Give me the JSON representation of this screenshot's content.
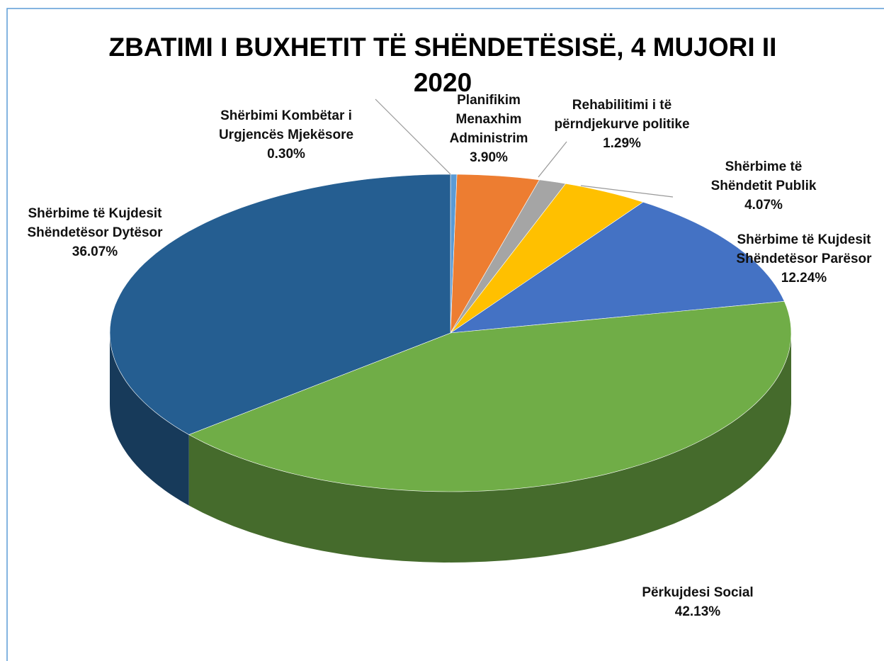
{
  "chart_data": {
    "type": "pie3d",
    "title": "ZBATIMI I BUXHETIT TË SHËNDETËSISË, 4 MUJORI II 2020",
    "categories": [
      "Shërbimi Kombëtar i Urgjencës Mjekësore",
      "Planifikim Menaxhim Administrim",
      "Rehabilitimi i të përndjekurve politike",
      "Shërbime të Shëndetit Publik",
      "Shërbime të Kujdesit Shëndetësor Parësor",
      "Përkujdesi Social",
      "Shërbime të Kujdesit Shëndetësor Dytësor"
    ],
    "values": [
      0.3,
      3.9,
      1.29,
      4.07,
      12.24,
      42.13,
      36.07
    ],
    "value_labels": [
      "0.30%",
      "3.90%",
      "1.29%",
      "4.07%",
      "12.24%",
      "42.13%",
      "36.07%"
    ],
    "colors": [
      "#5b9bd5",
      "#ed7d31",
      "#a5a5a5",
      "#ffc000",
      "#4472c4",
      "#70ad47",
      "#255e91"
    ]
  }
}
